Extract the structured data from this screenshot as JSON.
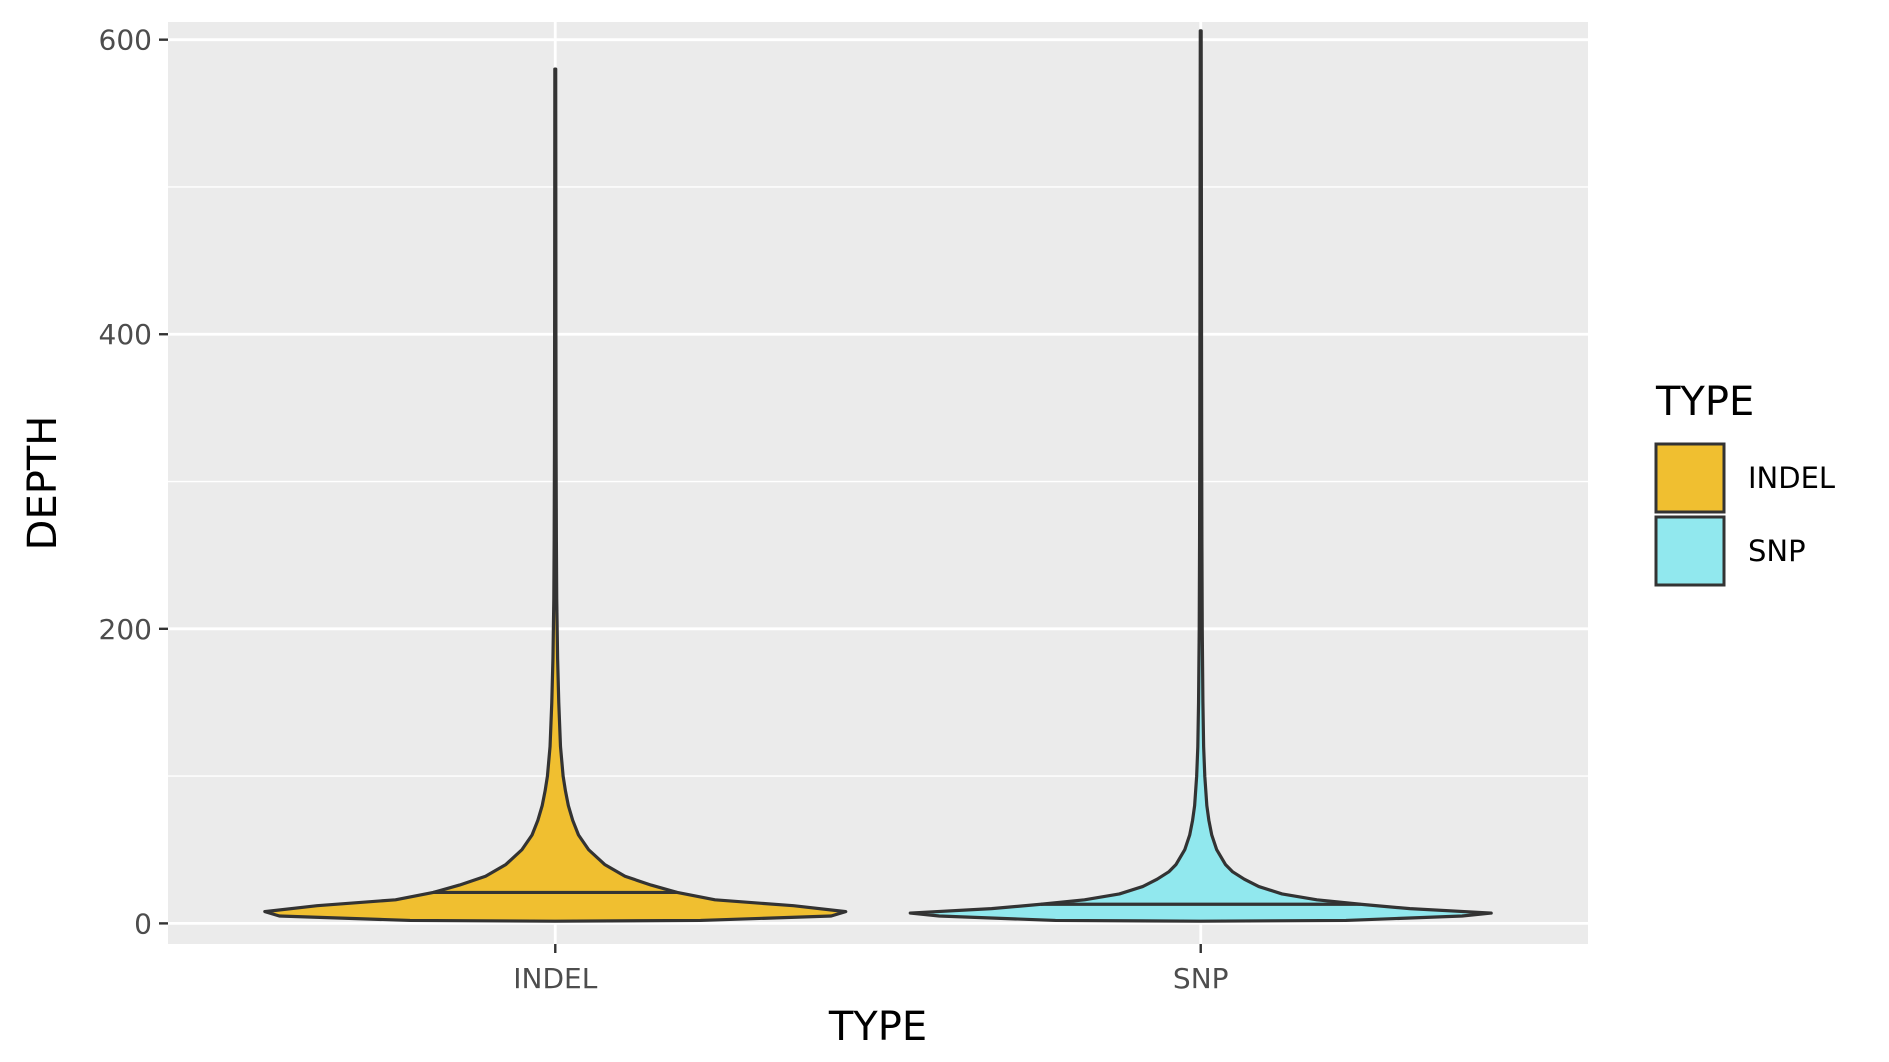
{
  "chart_data": {
    "type": "violin",
    "xlabel": "TYPE",
    "ylabel": "DEPTH",
    "categories": [
      "INDEL",
      "SNP"
    ],
    "ylim": [
      -14,
      612
    ],
    "yticks": [
      0,
      200,
      400,
      600
    ],
    "grid": true,
    "legend": {
      "title": "TYPE",
      "placement": "right",
      "entries": [
        {
          "label": "INDEL",
          "color": "#F0BF30"
        },
        {
          "label": "SNP",
          "color": "#91E8EE"
        }
      ]
    },
    "series": [
      {
        "category": "INDEL",
        "color": "#F0BF30",
        "median": 21,
        "max": 580,
        "min": 2,
        "profile": [
          [
            2,
            0.5
          ],
          [
            5,
            0.95
          ],
          [
            8,
            1.0
          ],
          [
            12,
            0.82
          ],
          [
            16,
            0.55
          ],
          [
            21,
            0.42
          ],
          [
            26,
            0.33
          ],
          [
            32,
            0.24
          ],
          [
            40,
            0.17
          ],
          [
            50,
            0.115
          ],
          [
            60,
            0.08
          ],
          [
            70,
            0.06
          ],
          [
            80,
            0.045
          ],
          [
            90,
            0.035
          ],
          [
            100,
            0.027
          ],
          [
            120,
            0.018
          ],
          [
            150,
            0.012
          ],
          [
            180,
            0.008
          ],
          [
            220,
            0.005
          ],
          [
            260,
            0.0038
          ],
          [
            320,
            0.0028
          ],
          [
            400,
            0.0022
          ],
          [
            500,
            0.0018
          ],
          [
            580,
            0.0015
          ]
        ]
      },
      {
        "category": "SNP",
        "color": "#91E8EE",
        "median": 13,
        "max": 606,
        "min": 2,
        "profile": [
          [
            2,
            0.5
          ],
          [
            5,
            0.9
          ],
          [
            7,
            1.0
          ],
          [
            10,
            0.72
          ],
          [
            13,
            0.55
          ],
          [
            16,
            0.4
          ],
          [
            20,
            0.28
          ],
          [
            25,
            0.2
          ],
          [
            30,
            0.15
          ],
          [
            35,
            0.11
          ],
          [
            40,
            0.085
          ],
          [
            50,
            0.055
          ],
          [
            60,
            0.038
          ],
          [
            70,
            0.028
          ],
          [
            80,
            0.021
          ],
          [
            100,
            0.014
          ],
          [
            120,
            0.01
          ],
          [
            150,
            0.0075
          ],
          [
            200,
            0.0052
          ],
          [
            260,
            0.004
          ],
          [
            330,
            0.0032
          ],
          [
            420,
            0.0026
          ],
          [
            520,
            0.0021
          ],
          [
            606,
            0.0015
          ]
        ]
      }
    ]
  }
}
